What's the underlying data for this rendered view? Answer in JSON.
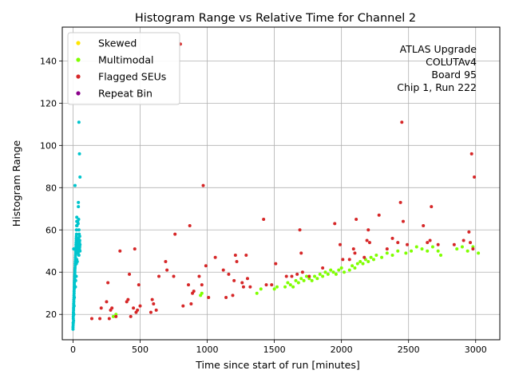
{
  "chart_data": {
    "type": "scatter",
    "title": "Histogram Range vs Relative Time for Channel 2",
    "xlabel": "Time since start of run [minutes]",
    "ylabel": "Histogram Range",
    "xlim": [
      -80,
      3180
    ],
    "ylim": [
      8,
      156
    ],
    "xticks": [
      0,
      500,
      1000,
      1500,
      2000,
      2500,
      3000
    ],
    "yticks": [
      20,
      40,
      60,
      80,
      100,
      120,
      140
    ],
    "grid": true,
    "legend_position": "top-left",
    "annotation": [
      "ATLAS Upgrade",
      "COLUTAv4",
      "Board 95",
      "Chip 1, Run 222"
    ],
    "series": [
      {
        "name": "Skewed",
        "color": "#ffe600",
        "points": []
      },
      {
        "name": "Multimodal",
        "color": "#7fff00",
        "points": [
          [
            300,
            19
          ],
          [
            320,
            20
          ],
          [
            950,
            29
          ],
          [
            960,
            30
          ],
          [
            1370,
            30
          ],
          [
            1400,
            32
          ],
          [
            1500,
            32
          ],
          [
            1520,
            33
          ],
          [
            1580,
            33
          ],
          [
            1600,
            35
          ],
          [
            1620,
            34
          ],
          [
            1640,
            33
          ],
          [
            1660,
            36
          ],
          [
            1680,
            35
          ],
          [
            1700,
            37
          ],
          [
            1720,
            36
          ],
          [
            1740,
            38
          ],
          [
            1760,
            37
          ],
          [
            1780,
            36
          ],
          [
            1800,
            38
          ],
          [
            1820,
            37
          ],
          [
            1840,
            39
          ],
          [
            1860,
            38
          ],
          [
            1880,
            40
          ],
          [
            1900,
            39
          ],
          [
            1920,
            41
          ],
          [
            1940,
            40
          ],
          [
            1960,
            39
          ],
          [
            1980,
            41
          ],
          [
            2000,
            42
          ],
          [
            2020,
            40
          ],
          [
            2060,
            41
          ],
          [
            2080,
            43
          ],
          [
            2100,
            42
          ],
          [
            2120,
            44
          ],
          [
            2140,
            45
          ],
          [
            2160,
            44
          ],
          [
            2180,
            46
          ],
          [
            2200,
            45
          ],
          [
            2220,
            47
          ],
          [
            2240,
            46
          ],
          [
            2260,
            48
          ],
          [
            2300,
            47
          ],
          [
            2340,
            49
          ],
          [
            2380,
            48
          ],
          [
            2420,
            50
          ],
          [
            2480,
            49
          ],
          [
            2520,
            50
          ],
          [
            2560,
            52
          ],
          [
            2600,
            51
          ],
          [
            2640,
            50
          ],
          [
            2680,
            52
          ],
          [
            2720,
            50
          ],
          [
            2740,
            48
          ],
          [
            2860,
            51
          ],
          [
            2900,
            52
          ],
          [
            2940,
            50
          ],
          [
            2980,
            52
          ],
          [
            3020,
            49
          ]
        ]
      },
      {
        "name": "Flagged SEUs",
        "color": "#d62728",
        "points": [
          [
            140,
            18
          ],
          [
            200,
            18
          ],
          [
            210,
            23
          ],
          [
            250,
            26
          ],
          [
            260,
            35
          ],
          [
            270,
            18
          ],
          [
            280,
            22
          ],
          [
            290,
            23
          ],
          [
            320,
            19
          ],
          [
            350,
            50
          ],
          [
            400,
            26
          ],
          [
            410,
            27
          ],
          [
            420,
            39
          ],
          [
            430,
            19
          ],
          [
            450,
            23
          ],
          [
            460,
            51
          ],
          [
            470,
            21
          ],
          [
            480,
            22
          ],
          [
            490,
            34
          ],
          [
            500,
            24
          ],
          [
            580,
            21
          ],
          [
            590,
            27
          ],
          [
            600,
            25
          ],
          [
            620,
            22
          ],
          [
            640,
            38
          ],
          [
            690,
            45
          ],
          [
            700,
            41
          ],
          [
            750,
            38
          ],
          [
            760,
            58
          ],
          [
            800,
            148
          ],
          [
            820,
            24
          ],
          [
            860,
            34
          ],
          [
            870,
            62
          ],
          [
            880,
            25
          ],
          [
            890,
            30
          ],
          [
            900,
            31
          ],
          [
            940,
            38
          ],
          [
            960,
            34
          ],
          [
            970,
            81
          ],
          [
            990,
            43
          ],
          [
            1010,
            28
          ],
          [
            1060,
            47
          ],
          [
            1120,
            41
          ],
          [
            1140,
            28
          ],
          [
            1160,
            39
          ],
          [
            1190,
            29
          ],
          [
            1200,
            36
          ],
          [
            1210,
            48
          ],
          [
            1220,
            45
          ],
          [
            1260,
            35
          ],
          [
            1270,
            33
          ],
          [
            1290,
            48
          ],
          [
            1300,
            37
          ],
          [
            1320,
            33
          ],
          [
            1420,
            65
          ],
          [
            1440,
            34
          ],
          [
            1480,
            34
          ],
          [
            1510,
            44
          ],
          [
            1590,
            38
          ],
          [
            1630,
            38
          ],
          [
            1670,
            39
          ],
          [
            1690,
            60
          ],
          [
            1700,
            49
          ],
          [
            1710,
            40
          ],
          [
            1760,
            38
          ],
          [
            1860,
            42
          ],
          [
            1950,
            63
          ],
          [
            1990,
            53
          ],
          [
            2010,
            46
          ],
          [
            2060,
            46
          ],
          [
            2090,
            51
          ],
          [
            2100,
            49
          ],
          [
            2110,
            65
          ],
          [
            2170,
            47
          ],
          [
            2190,
            55
          ],
          [
            2200,
            60
          ],
          [
            2210,
            54
          ],
          [
            2280,
            67
          ],
          [
            2340,
            51
          ],
          [
            2380,
            56
          ],
          [
            2420,
            54
          ],
          [
            2440,
            73
          ],
          [
            2450,
            111
          ],
          [
            2460,
            64
          ],
          [
            2490,
            53
          ],
          [
            2610,
            62
          ],
          [
            2640,
            54
          ],
          [
            2660,
            55
          ],
          [
            2670,
            71
          ],
          [
            2720,
            53
          ],
          [
            2840,
            53
          ],
          [
            2910,
            55
          ],
          [
            2950,
            59
          ],
          [
            2960,
            54
          ],
          [
            2970,
            96
          ],
          [
            2980,
            51
          ],
          [
            2990,
            85
          ]
        ]
      },
      {
        "name": "Repeat Bin",
        "color": "#8b008b",
        "points": []
      }
    ],
    "startup_cluster": {
      "color": "#00c5cd",
      "points": [
        [
          0,
          13
        ],
        [
          0,
          14
        ],
        [
          1,
          15
        ],
        [
          1,
          16
        ],
        [
          2,
          18
        ],
        [
          2,
          19
        ],
        [
          3,
          20
        ],
        [
          3,
          21
        ],
        [
          4,
          22
        ],
        [
          4,
          23
        ],
        [
          5,
          24
        ],
        [
          5,
          25
        ],
        [
          6,
          26
        ],
        [
          6,
          27
        ],
        [
          7,
          28
        ],
        [
          7,
          29
        ],
        [
          8,
          30
        ],
        [
          8,
          31
        ],
        [
          9,
          32
        ],
        [
          9,
          33
        ],
        [
          10,
          34
        ],
        [
          10,
          35
        ],
        [
          11,
          36
        ],
        [
          12,
          37
        ],
        [
          12,
          38
        ],
        [
          13,
          39
        ],
        [
          14,
          40
        ],
        [
          14,
          41
        ],
        [
          15,
          42
        ],
        [
          16,
          43
        ],
        [
          16,
          44
        ],
        [
          17,
          45
        ],
        [
          18,
          46
        ],
        [
          18,
          47
        ],
        [
          19,
          48
        ],
        [
          20,
          49
        ],
        [
          20,
          50
        ],
        [
          21,
          51
        ],
        [
          22,
          52
        ],
        [
          22,
          53
        ],
        [
          23,
          54
        ],
        [
          24,
          55
        ],
        [
          24,
          56
        ],
        [
          25,
          57
        ],
        [
          26,
          58
        ],
        [
          26,
          60
        ],
        [
          27,
          62
        ],
        [
          28,
          64
        ],
        [
          28,
          66
        ],
        [
          5,
          51
        ],
        [
          30,
          50
        ],
        [
          30,
          52
        ],
        [
          32,
          49
        ],
        [
          32,
          54
        ],
        [
          34,
          50
        ],
        [
          34,
          55
        ],
        [
          36,
          51
        ],
        [
          36,
          53
        ],
        [
          38,
          52
        ],
        [
          38,
          49
        ],
        [
          40,
          50
        ],
        [
          40,
          54
        ],
        [
          42,
          51
        ],
        [
          42,
          56
        ],
        [
          44,
          52
        ],
        [
          44,
          48
        ],
        [
          46,
          53
        ],
        [
          46,
          50
        ],
        [
          48,
          54
        ],
        [
          48,
          51
        ],
        [
          50,
          55
        ],
        [
          50,
          52
        ],
        [
          52,
          53
        ],
        [
          52,
          50
        ],
        [
          15,
          81
        ],
        [
          40,
          71
        ],
        [
          40,
          73
        ],
        [
          44,
          111
        ],
        [
          48,
          96
        ],
        [
          52,
          85
        ],
        [
          38,
          63
        ],
        [
          44,
          60
        ],
        [
          30,
          62
        ],
        [
          35,
          64
        ],
        [
          42,
          65
        ],
        [
          46,
          58
        ],
        [
          50,
          57
        ],
        [
          25,
          44
        ],
        [
          28,
          46
        ],
        [
          32,
          45
        ],
        [
          20,
          36
        ],
        [
          24,
          38
        ],
        [
          18,
          33
        ],
        [
          10,
          28
        ],
        [
          8,
          24
        ],
        [
          6,
          20
        ],
        [
          4,
          17
        ],
        [
          2,
          16
        ]
      ]
    }
  }
}
